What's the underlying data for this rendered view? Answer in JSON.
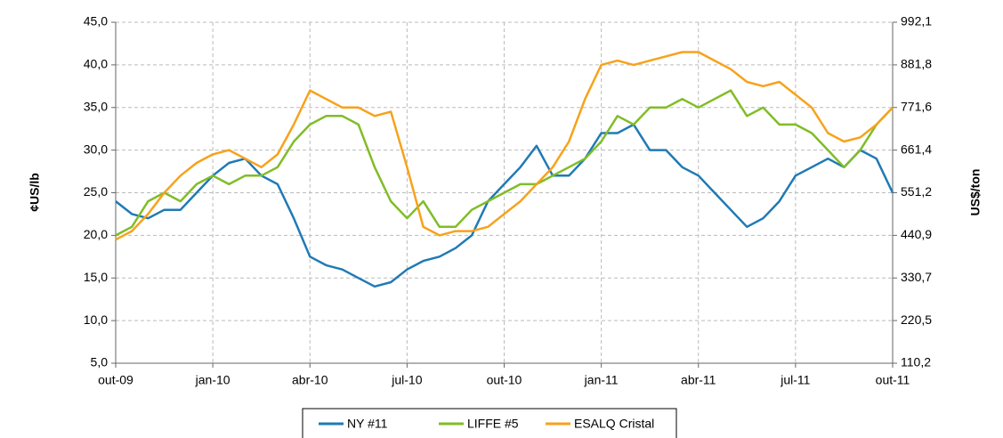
{
  "chart_data": {
    "type": "line",
    "y_label": "¢US/lb",
    "y2_label": "US$/ton",
    "categories": [
      "out-09",
      null,
      null,
      null,
      null,
      null,
      "jan-10",
      null,
      null,
      null,
      null,
      null,
      "abr-10",
      null,
      null,
      null,
      null,
      null,
      "jul-10",
      null,
      null,
      null,
      null,
      null,
      "out-10",
      null,
      null,
      null,
      null,
      null,
      "jan-11",
      null,
      null,
      null,
      null,
      null,
      "abr-11",
      null,
      null,
      null,
      null,
      null,
      "jul-11",
      null,
      null,
      null,
      null,
      null,
      "out-11"
    ],
    "series": [
      {
        "name": "NY #11",
        "color": "#1f7ab5",
        "values": [
          24,
          22.5,
          22,
          23,
          23,
          25,
          27,
          28.5,
          29,
          27,
          26,
          22,
          17.5,
          16.5,
          16,
          15,
          14,
          14.5,
          16,
          17,
          17.5,
          18.5,
          20,
          24,
          26,
          28,
          30.5,
          27,
          27,
          29,
          32,
          32,
          33,
          30,
          30,
          28,
          27,
          25,
          23,
          21,
          22,
          24,
          27,
          28,
          29,
          28,
          30,
          29,
          25
        ]
      },
      {
        "name": "LIFFE #5",
        "color": "#80bd26",
        "values": [
          20,
          21,
          24,
          25,
          24,
          26,
          27,
          26,
          27,
          27,
          28,
          31,
          33,
          34,
          34,
          33,
          28,
          24,
          22,
          24,
          21,
          21,
          23,
          24,
          25,
          26,
          26,
          27,
          28,
          29,
          31,
          34,
          33,
          35,
          35,
          36,
          35,
          36,
          37,
          34,
          35,
          33,
          33,
          32,
          30,
          28,
          30,
          33,
          35
        ]
      },
      {
        "name": "ESALQ Cristal",
        "color": "#f7a21b",
        "values": [
          19.5,
          20.5,
          22.5,
          25,
          27,
          28.5,
          29.5,
          30,
          29,
          28,
          29.5,
          33,
          37,
          36,
          35,
          35,
          34,
          34.5,
          28,
          21,
          20,
          20.5,
          20.5,
          21,
          22.5,
          24,
          26,
          28,
          31,
          36,
          40,
          40.5,
          40,
          40.5,
          41,
          41.5,
          41.5,
          40.5,
          39.5,
          38,
          37.5,
          38,
          36.5,
          35,
          32,
          31,
          31.5,
          33,
          35
        ]
      }
    ],
    "ylim": [
      5,
      45
    ],
    "yticks": [
      {
        "value": 5,
        "label": "5,0"
      },
      {
        "value": 10,
        "label": "10,0"
      },
      {
        "value": 15,
        "label": "15,0"
      },
      {
        "value": 20,
        "label": "20,0"
      },
      {
        "value": 25,
        "label": "25,0"
      },
      {
        "value": 30,
        "label": "30,0"
      },
      {
        "value": 35,
        "label": "35,0"
      },
      {
        "value": 40,
        "label": "40,0"
      },
      {
        "value": 45,
        "label": "45,0"
      }
    ],
    "y2lim": [
      110.2,
      992.1
    ],
    "y2ticks": [
      {
        "value": 110.2,
        "label": "110,2"
      },
      {
        "value": 220.5,
        "label": "220,5"
      },
      {
        "value": 330.7,
        "label": "330,7"
      },
      {
        "value": 440.9,
        "label": "440,9"
      },
      {
        "value": 551.2,
        "label": "551,2"
      },
      {
        "value": 661.4,
        "label": "661,4"
      },
      {
        "value": 771.6,
        "label": "771,6"
      },
      {
        "value": 881.8,
        "label": "881,8"
      },
      {
        "value": 992.1,
        "label": "992,1"
      }
    ],
    "grid": true,
    "legend": "bottom"
  }
}
